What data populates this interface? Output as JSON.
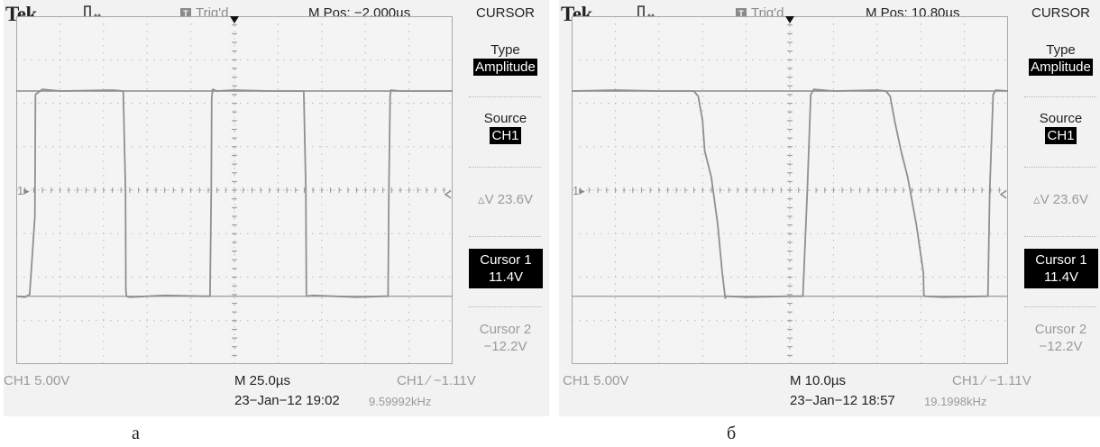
{
  "chart_data": [
    {
      "type": "line",
      "caption": "а",
      "brand": "Tek",
      "trigger_status": "Trig'd",
      "trigger_badge": "T",
      "m_pos": "M Pos: −2.000µs",
      "menu": {
        "title": "CURSOR",
        "type_label": "Type",
        "type_value": "Amplitude",
        "source_label": "Source",
        "source_value": "CH1",
        "delta_v": "▵V 23.6V",
        "cursor1_label": "Cursor 1",
        "cursor1_value": "11.4V",
        "cursor2_label": "Cursor 2",
        "cursor2_value": "−12.2V"
      },
      "ch1_scale": "CH1  5.00V",
      "timebase": "M 25.0µs",
      "trigger_readout": "CH1 ∕ −1.11V",
      "datetime": "23−Jan−12 19:02",
      "frequency": "9.59992kHz",
      "channel_marker": "1▸",
      "x_div": 10,
      "y_div": 8,
      "time_per_div_us": 25.0,
      "volts_per_div": 5.0,
      "cursor1_v": 11.4,
      "cursor2_v": -12.2,
      "waveform": {
        "name": "CH1",
        "x_us": [
          -125,
          -120,
          -117.3,
          -114.3,
          -114,
          -110,
          -100,
          -70,
          -63.7,
          -62.4,
          -62.2,
          -61.9,
          -60,
          -40,
          -18,
          -14,
          -13.3,
          -13,
          -12.5,
          -10,
          0,
          20,
          35,
          39.7,
          40.9,
          41.2,
          41.5,
          45,
          70,
          86,
          88,
          88.5,
          89.2,
          89.6,
          95,
          125
        ],
        "y_v": [
          -12.2,
          -12.3,
          -12.0,
          -3.0,
          11.0,
          11.6,
          11.4,
          11.5,
          11.4,
          0.0,
          -11.5,
          -12.2,
          -12.3,
          -12.1,
          -12.2,
          -12.2,
          0.0,
          10.5,
          11.6,
          11.4,
          11.5,
          11.4,
          11.4,
          11.4,
          0.0,
          -11.8,
          -12.2,
          -12.1,
          -12.3,
          -12.2,
          -12.2,
          0.0,
          10.8,
          11.5,
          11.4,
          11.4
        ]
      }
    },
    {
      "type": "line",
      "caption": "б",
      "brand": "Tek",
      "trigger_status": "Trig'd",
      "trigger_badge": "T",
      "m_pos": "M Pos: 10.80µs",
      "menu": {
        "title": "CURSOR",
        "type_label": "Type",
        "type_value": "Amplitude",
        "source_label": "Source",
        "source_value": "CH1",
        "delta_v": "▵V 23.6V",
        "cursor1_label": "Cursor 1",
        "cursor1_value": "11.4V",
        "cursor2_label": "Cursor 2",
        "cursor2_value": "−12.2V"
      },
      "ch1_scale": "CH1  5.00V",
      "timebase": "M 10.0µs",
      "trigger_readout": "CH1 ∕ −1.11V",
      "datetime": "23−Jan−12 18:57",
      "frequency": "19.1998kHz",
      "channel_marker": "1▸",
      "x_div": 10,
      "y_div": 8,
      "time_per_div_us": 10.0,
      "volts_per_div": 5.0,
      "cursor1_v": 11.4,
      "cursor2_v": -12.2,
      "waveform": {
        "name": "CH1",
        "x_us": [
          -50,
          -40,
          -30,
          -22,
          -21,
          -20,
          -19.5,
          -18,
          -16.5,
          -15.5,
          -14.9,
          -14.8,
          -14.6,
          -10,
          0,
          3.0,
          4.0,
          4.8,
          5.5,
          10,
          20,
          22,
          23,
          24,
          25.5,
          27,
          29,
          30.6,
          30.7,
          30.9,
          35,
          45.4,
          45.8,
          46.6,
          47.2,
          50
        ],
        "y_v": [
          11.4,
          11.5,
          11.4,
          11.4,
          10.8,
          8.0,
          4.5,
          1.5,
          -4.0,
          -9.5,
          -12.0,
          -12.4,
          -12.2,
          -12.3,
          -12.2,
          -12.2,
          0.0,
          11.0,
          11.6,
          11.4,
          11.5,
          11.4,
          10.8,
          8.0,
          4.5,
          1.5,
          -4.0,
          -9.5,
          -12.0,
          -12.2,
          -12.3,
          -12.2,
          0.0,
          11.0,
          11.5,
          11.4
        ]
      }
    }
  ]
}
